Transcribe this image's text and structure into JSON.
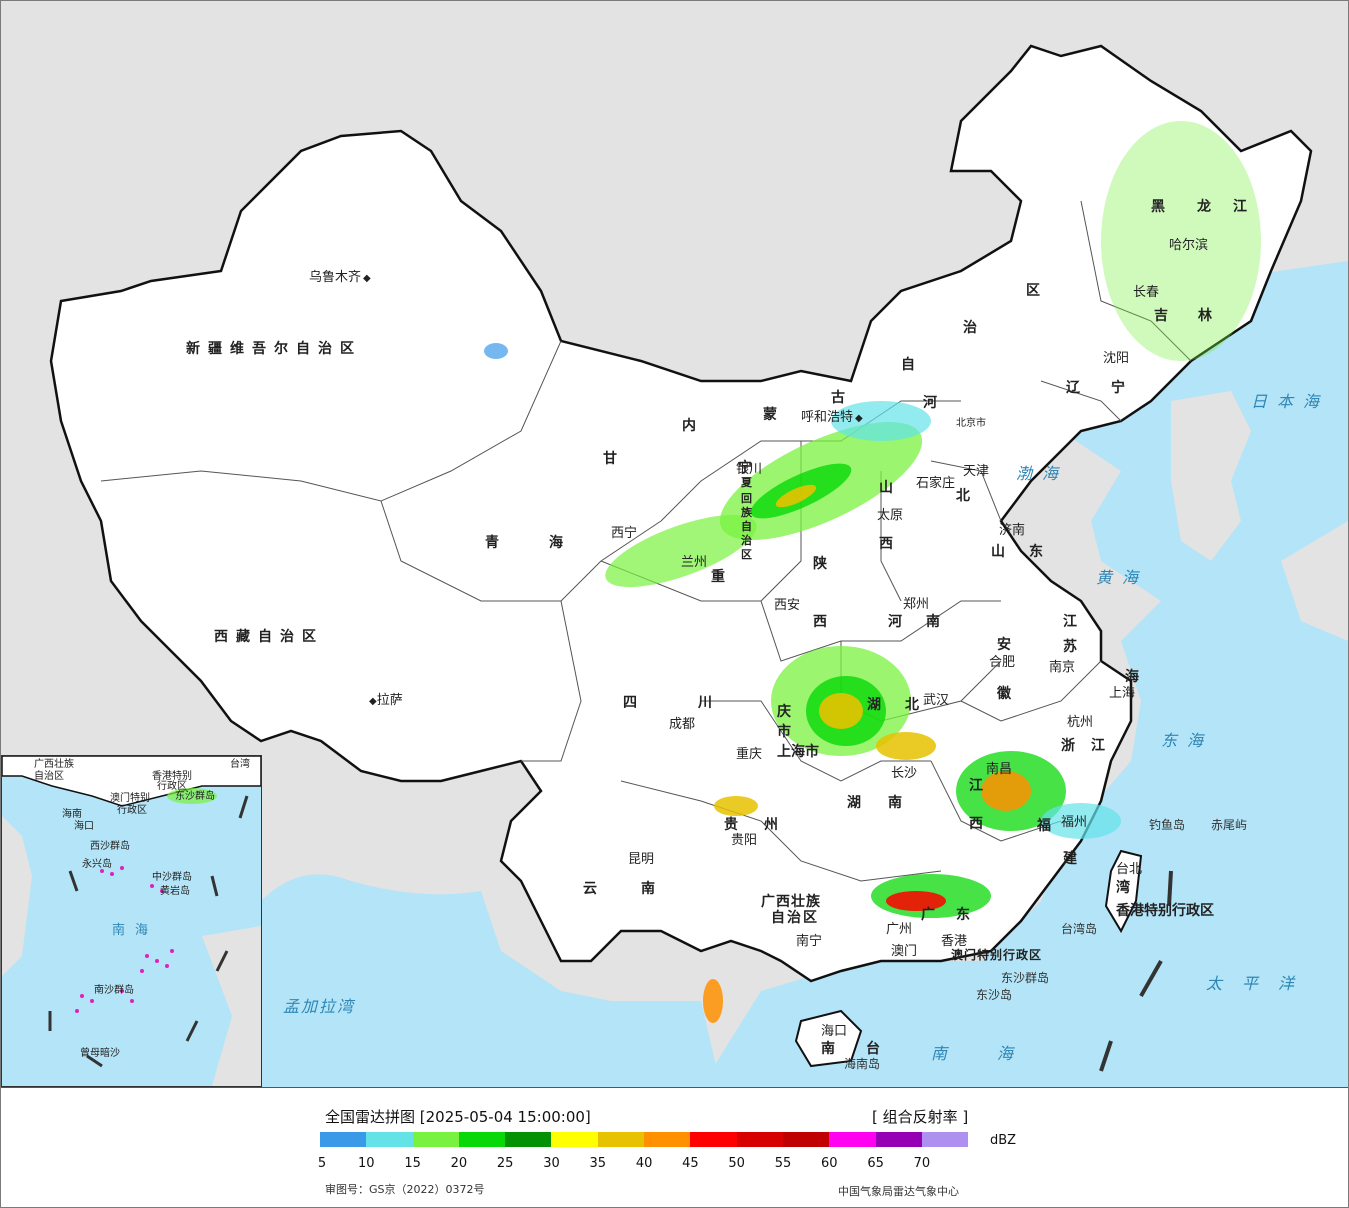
{
  "legend": {
    "title": "全国雷达拼图 [2025-05-04 15:00:00]",
    "product": "[ 组合反射率 ]",
    "unit": "dBZ",
    "ticks": [
      "5",
      "10",
      "15",
      "20",
      "25",
      "30",
      "35",
      "40",
      "45",
      "50",
      "55",
      "60",
      "65",
      "70"
    ],
    "colors": [
      "#3a9ae8",
      "#63e3e8",
      "#79f23f",
      "#08d808",
      "#049104",
      "#ffff00",
      "#e6c200",
      "#ff9000",
      "#ff0000",
      "#d60000",
      "#c00000",
      "#ff00f0",
      "#9600b4",
      "#ad90f0"
    ],
    "approval": "审图号：GS京（2022）0372号",
    "source": "中国气象局雷达气象中心"
  },
  "map": {
    "colors": {
      "land": "#ffffff",
      "outside": "#e3e3e3",
      "sea": "#b3e4f7",
      "border": "#111111"
    },
    "cities": [
      "乌鲁木齐",
      "拉萨",
      "西宁",
      "兰州",
      "银川",
      "呼和浩特",
      "北京市",
      "天津",
      "石家庄",
      "太原",
      "济南",
      "郑州",
      "西安",
      "成都",
      "重庆",
      "武汉",
      "合肥",
      "南京",
      "上海",
      "杭州",
      "南昌",
      "长沙",
      "福州",
      "贵阳",
      "昆明",
      "南宁",
      "广州",
      "澳门",
      "香港",
      "海口",
      "台北",
      "哈尔滨",
      "长春",
      "沈阳"
    ],
    "regions": [
      "新疆维吾尔自治区",
      "西藏自治区",
      "青海",
      "甘",
      "内",
      "蒙",
      "古",
      "自",
      "治",
      "区",
      "黑",
      "龙",
      "江",
      "吉",
      "林",
      "辽",
      "宁",
      "河",
      "北",
      "山",
      "西",
      "陕",
      "西",
      "山",
      "东",
      "河",
      "南",
      "四",
      "川",
      "云",
      "南",
      "贵",
      "州",
      "湖",
      "北",
      "湖",
      "南",
      "安",
      "徽",
      "江",
      "苏",
      "浙",
      "江",
      "江",
      "西",
      "福",
      "建",
      "广",
      "东",
      "广西壮族",
      "自治区",
      "宁",
      "夏",
      "回",
      "族",
      "自",
      "治",
      "区",
      "重",
      "庆",
      "市",
      "上海市",
      "海",
      "南",
      "台",
      "湾",
      "香港特别行政区",
      "澳门特别行政区"
    ],
    "seas": [
      "日本海",
      "渤海",
      "黄海",
      "东海",
      "太平洋",
      "南海",
      "孟加拉湾"
    ],
    "islands": [
      "钓鱼岛",
      "赤尾屿",
      "台湾岛",
      "东沙群岛",
      "东沙岛",
      "海南岛"
    ],
    "inset": {
      "labels": [
        "广西壮族",
        "自治区",
        "海南",
        "香港特别",
        "行政区",
        "澳门特别",
        "行政区",
        "台湾",
        "东沙群岛",
        "海口",
        "西沙群岛",
        "永兴岛",
        "中沙群岛",
        "黄岩岛",
        "南沙群岛",
        "曾母暗沙"
      ],
      "sea": "南海"
    }
  }
}
